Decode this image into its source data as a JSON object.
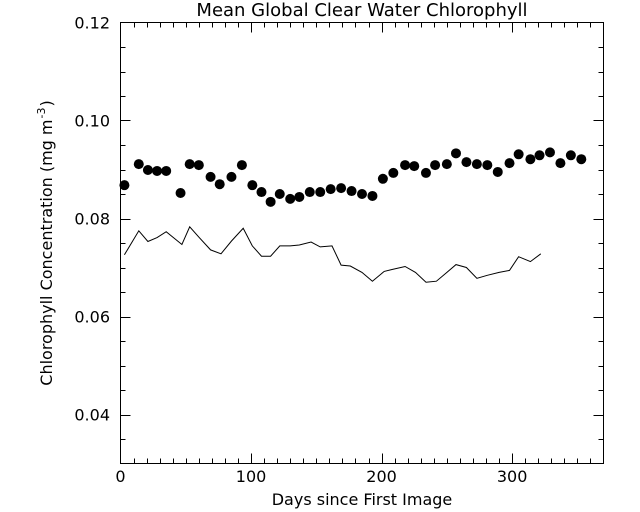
{
  "chart_data": {
    "type": "scatter",
    "title": "Mean Global Clear Water Chlorophyll",
    "xlabel": "Days since First Image",
    "ylabel": "Chlorophyll Concentration (mg m",
    "ylabel_superscript": "-3",
    "ylabel_close": ")",
    "xlim": [
      0,
      370
    ],
    "ylim": [
      0.03,
      0.12
    ],
    "x_ticks": [
      {
        "value": 0,
        "label": "0"
      },
      {
        "value": 100,
        "label": "100"
      },
      {
        "value": 200,
        "label": "200"
      },
      {
        "value": 300,
        "label": "300"
      }
    ],
    "y_ticks": [
      {
        "value": 0.04,
        "label": "0.04"
      },
      {
        "value": 0.06,
        "label": "0.06"
      },
      {
        "value": 0.08,
        "label": "0.08"
      },
      {
        "value": 0.1,
        "label": "0.10"
      },
      {
        "value": 0.12,
        "label": "0.12"
      }
    ],
    "x_minor_step": 10,
    "y_minor_step": 0.005,
    "grid": false,
    "color": "#000000",
    "series": [
      {
        "name": "dots",
        "style": "markers",
        "x": [
          3,
          14,
          21,
          28,
          35,
          46,
          53,
          60,
          69,
          76,
          85,
          93,
          101,
          108,
          115,
          122,
          130,
          137,
          145,
          153,
          161,
          169,
          177,
          185,
          193,
          201,
          209,
          218,
          225,
          234,
          241,
          250,
          257,
          265,
          273,
          281,
          289,
          298,
          305,
          314,
          321,
          329,
          337,
          345,
          353
        ],
        "y": [
          0.0868,
          0.0911,
          0.0899,
          0.0897,
          0.0897,
          0.0852,
          0.0911,
          0.0909,
          0.0885,
          0.087,
          0.0885,
          0.0909,
          0.0868,
          0.0854,
          0.0834,
          0.085,
          0.084,
          0.0844,
          0.0854,
          0.0854,
          0.086,
          0.0862,
          0.0856,
          0.085,
          0.0846,
          0.0881,
          0.0893,
          0.0909,
          0.0907,
          0.0893,
          0.0909,
          0.0911,
          0.0933,
          0.0915,
          0.0911,
          0.0909,
          0.0895,
          0.0913,
          0.0931,
          0.0921,
          0.0929,
          0.0935,
          0.0913,
          0.0929,
          0.0921
        ]
      },
      {
        "name": "line",
        "style": "line",
        "x": [
          3,
          14,
          21,
          28,
          35,
          47,
          53,
          60,
          69,
          77,
          85,
          94,
          101,
          108,
          115,
          122,
          130,
          137,
          146,
          153,
          162,
          169,
          176,
          185,
          193,
          202,
          208,
          218,
          226,
          234,
          242,
          250,
          257,
          265,
          273,
          281,
          290,
          298,
          305,
          314,
          322
        ],
        "y": [
          0.0726,
          0.0775,
          0.0753,
          0.0761,
          0.0773,
          0.0747,
          0.0783,
          0.0762,
          0.0736,
          0.0728,
          0.0754,
          0.078,
          0.0744,
          0.0723,
          0.0723,
          0.0744,
          0.0744,
          0.0746,
          0.0752,
          0.0742,
          0.0744,
          0.0705,
          0.0703,
          0.069,
          0.0672,
          0.0692,
          0.0696,
          0.0702,
          0.069,
          0.067,
          0.0672,
          0.069,
          0.0706,
          0.07,
          0.0678,
          0.0684,
          0.069,
          0.0694,
          0.0722,
          0.0712,
          0.0728
        ]
      }
    ]
  }
}
